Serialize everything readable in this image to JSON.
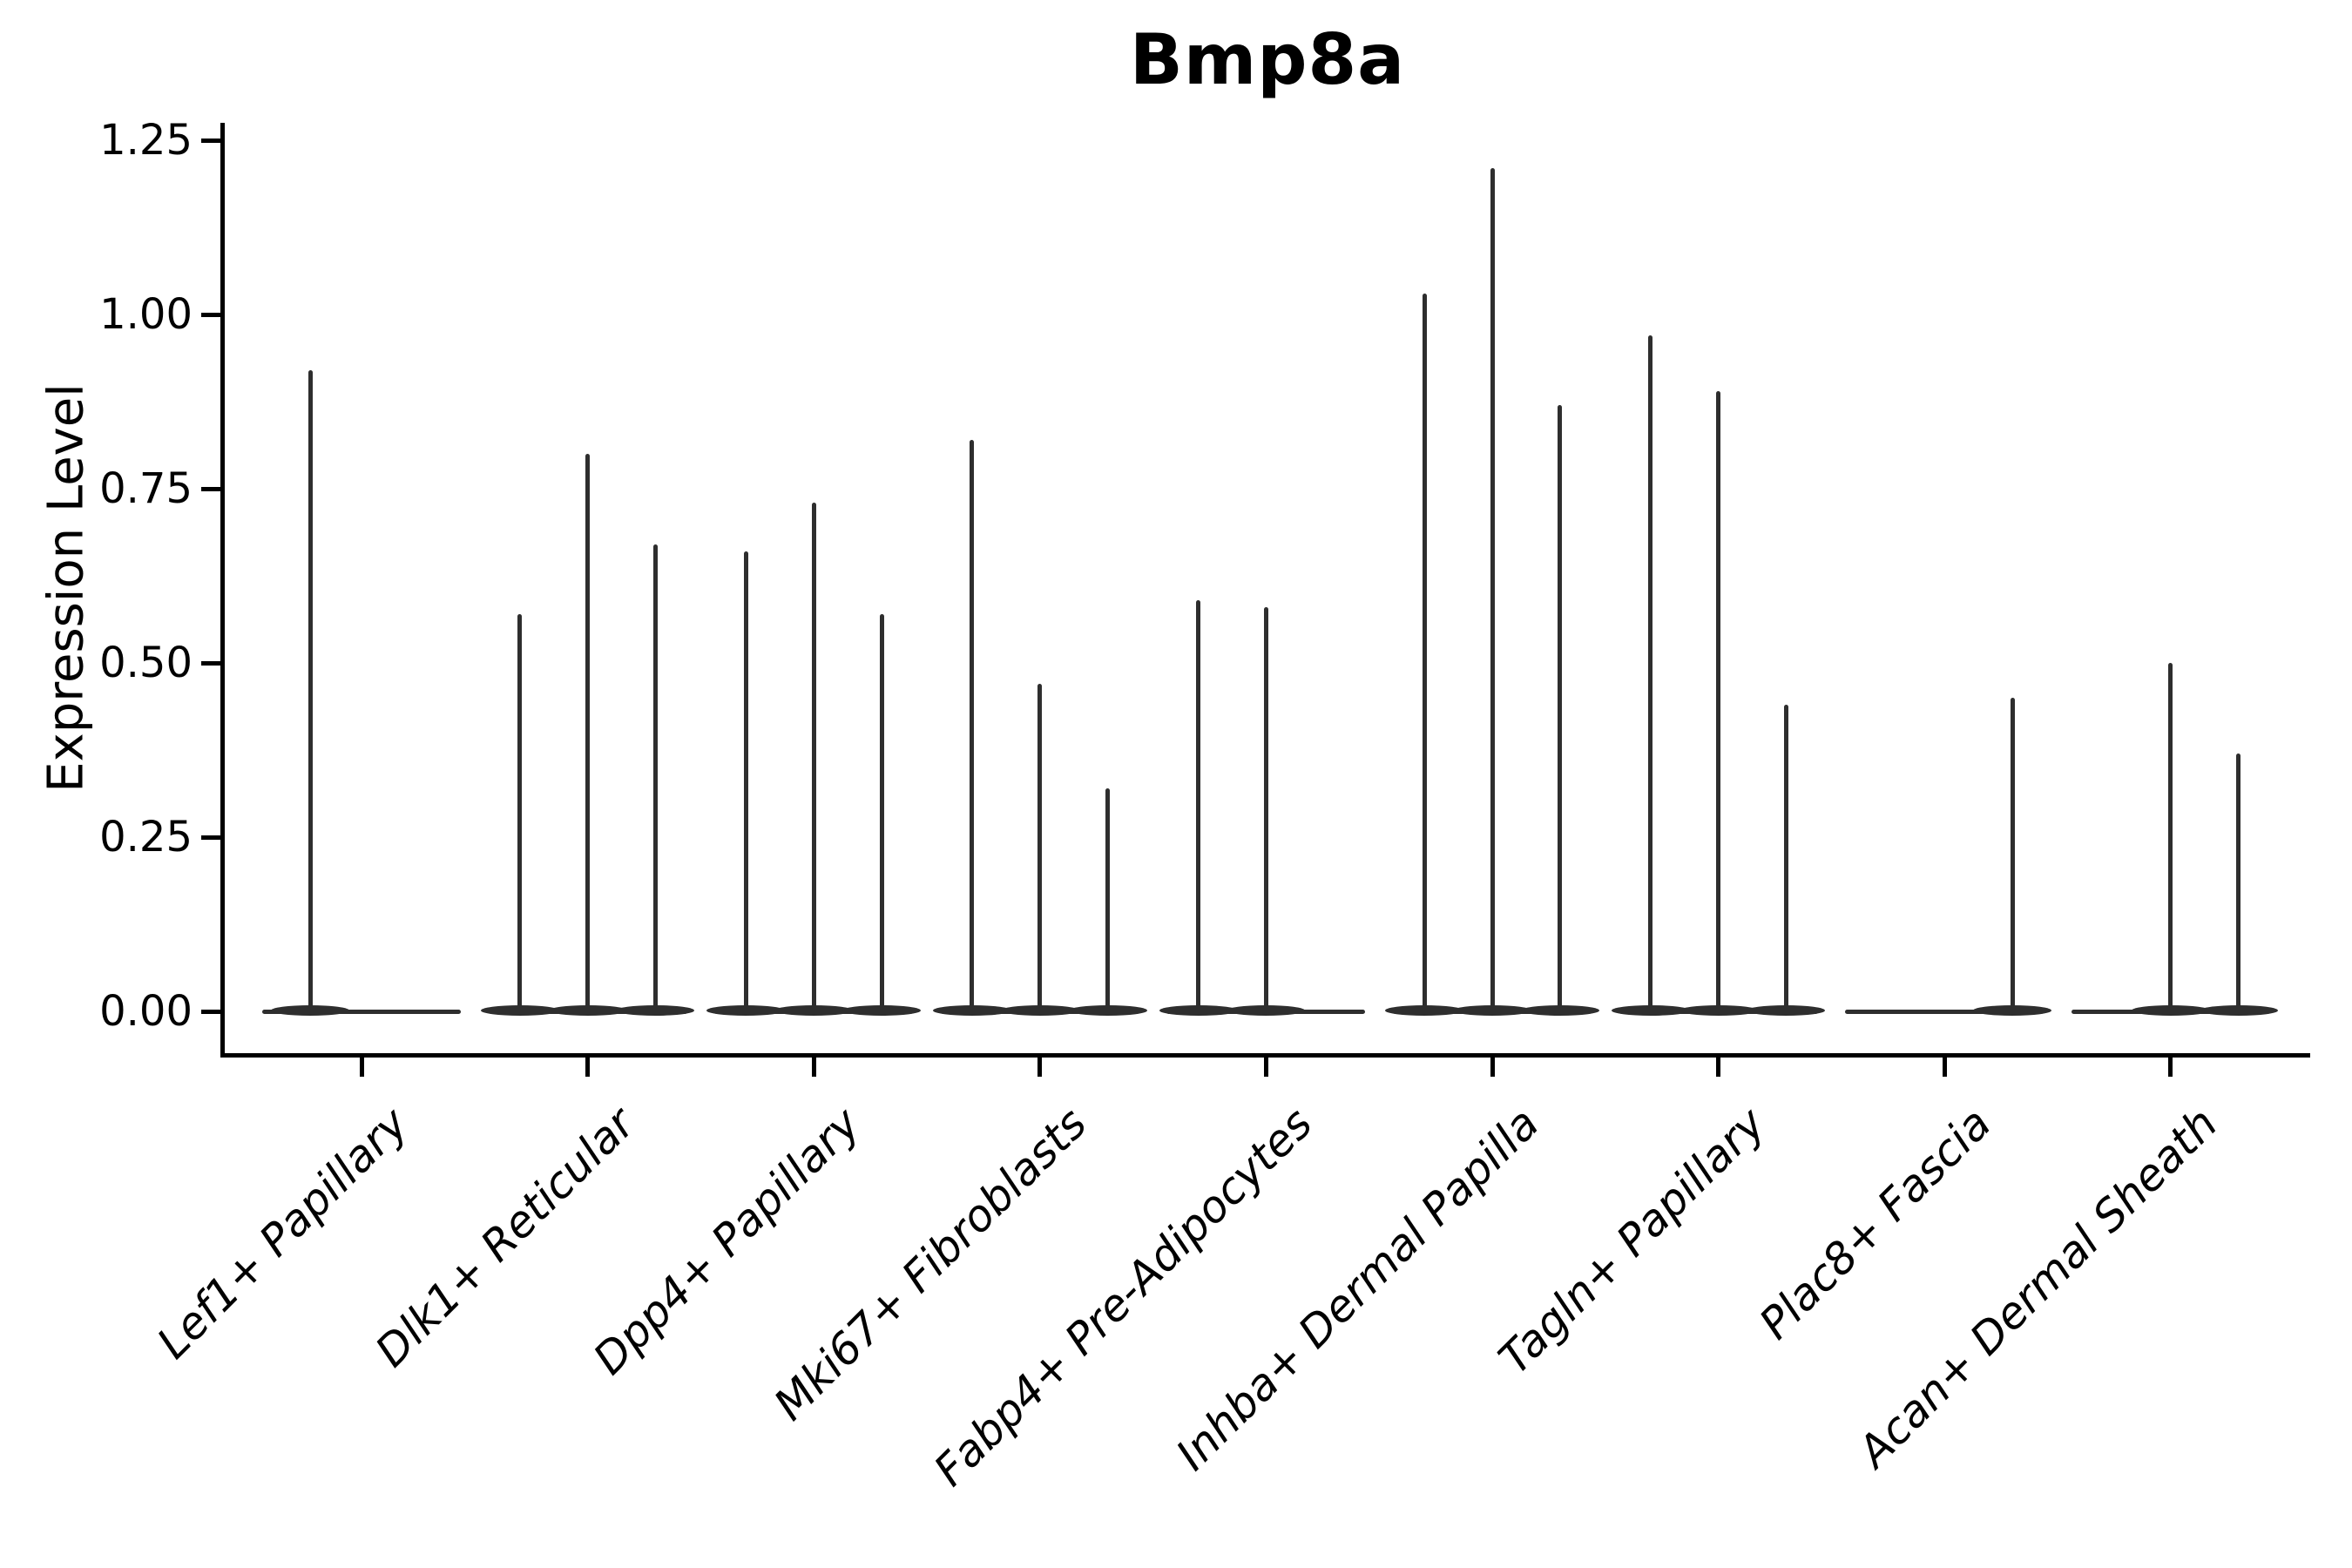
{
  "title": "Bmp8a",
  "chart_data": {
    "type": "violin",
    "title": "Bmp8a",
    "xlabel": "",
    "ylabel": "Expression Level",
    "ylim": [
      -0.06,
      1.275
    ],
    "yticks": [
      0,
      0.25,
      0.5,
      0.75,
      1.0,
      1.25
    ],
    "ytick_labels": [
      "0.00",
      "0.25",
      "0.50",
      "0.75",
      "1.00",
      "1.25"
    ],
    "grid": false,
    "legend": "none",
    "style_note": "thin spike-shaped violins, nearly all density at 0, dark charcoal strokes, left and bottom spines only, x labels rotated 45deg italic",
    "colors": {
      "violin": "#2e2e2e",
      "axis": "#000000",
      "background": "#ffffff"
    },
    "categories": [
      "Lef1+ Papillary",
      "Dlk1+ Reticular",
      "Dpp4+ Papillary",
      "Mki67+ Fibroblasts",
      "Fabp4+ Pre-Adipocytes",
      "Inhba+ Dermal Papilla",
      "Tagln+ Papillary",
      "Plac8+ Fascia",
      "Acan+ Dermal Sheath"
    ],
    "groups": [
      {
        "category": "Lef1+ Papillary",
        "spikes": [
          {
            "offset": -0.227,
            "value": 0.92
          }
        ]
      },
      {
        "category": "Dlk1+ Reticular",
        "spikes": [
          {
            "offset": -0.3,
            "value": 0.57
          },
          {
            "offset": 0.0,
            "value": 0.8
          },
          {
            "offset": 0.3,
            "value": 0.67
          }
        ]
      },
      {
        "category": "Dpp4+ Papillary",
        "spikes": [
          {
            "offset": -0.3,
            "value": 0.66
          },
          {
            "offset": 0.0,
            "value": 0.73
          },
          {
            "offset": 0.3,
            "value": 0.57
          }
        ]
      },
      {
        "category": "Mki67+ Fibroblasts",
        "spikes": [
          {
            "offset": -0.3,
            "value": 0.82
          },
          {
            "offset": 0.0,
            "value": 0.47
          },
          {
            "offset": 0.3,
            "value": 0.32
          }
        ]
      },
      {
        "category": "Fabp4+ Pre-Adipocytes",
        "spikes": [
          {
            "offset": -0.3,
            "value": 0.59
          },
          {
            "offset": 0.0,
            "value": 0.58
          }
        ]
      },
      {
        "category": "Inhba+ Dermal Papilla",
        "spikes": [
          {
            "offset": -0.3,
            "value": 1.03
          },
          {
            "offset": 0.0,
            "value": 1.21
          },
          {
            "offset": 0.3,
            "value": 0.87
          }
        ]
      },
      {
        "category": "Tagln+ Papillary",
        "spikes": [
          {
            "offset": -0.3,
            "value": 0.97
          },
          {
            "offset": 0.0,
            "value": 0.89
          },
          {
            "offset": 0.3,
            "value": 0.44
          }
        ]
      },
      {
        "category": "Plac8+ Fascia",
        "spikes": [
          {
            "offset": 0.3,
            "value": 0.45
          }
        ]
      },
      {
        "category": "Acan+ Dermal Sheath",
        "spikes": [
          {
            "offset": 0.0,
            "value": 0.5
          },
          {
            "offset": 0.3,
            "value": 0.37
          }
        ]
      }
    ]
  }
}
